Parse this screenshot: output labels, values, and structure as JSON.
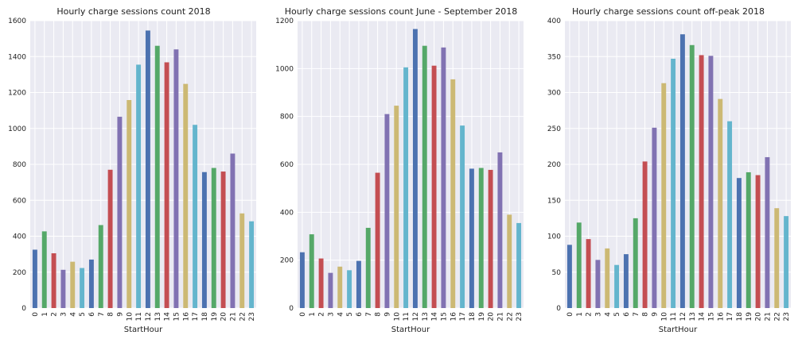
{
  "palette": [
    "#4C72B0",
    "#55A868",
    "#C44E52",
    "#8172B2",
    "#CCB974",
    "#64B5CD"
  ],
  "chart_data": [
    {
      "type": "bar",
      "title": "Hourly charge sessions count 2018",
      "xlabel": "StartHour",
      "ylabel": "",
      "ylim": [
        0,
        1600
      ],
      "yticks": [
        0,
        200,
        400,
        600,
        800,
        1000,
        1200,
        1400,
        1600
      ],
      "categories": [
        "0",
        "1",
        "2",
        "3",
        "4",
        "5",
        "6",
        "7",
        "8",
        "9",
        "10",
        "11",
        "12",
        "13",
        "14",
        "15",
        "16",
        "17",
        "18",
        "19",
        "20",
        "21",
        "22",
        "23"
      ],
      "values": [
        325,
        427,
        305,
        213,
        258,
        223,
        270,
        462,
        770,
        1065,
        1158,
        1355,
        1545,
        1460,
        1368,
        1440,
        1248,
        1020,
        757,
        780,
        760,
        860,
        527,
        483
      ],
      "grid": true,
      "legend": "none"
    },
    {
      "type": "bar",
      "title": "Hourly charge sessions count June - September 2018",
      "xlabel": "StartHour",
      "ylabel": "",
      "ylim": [
        0,
        1200
      ],
      "yticks": [
        0,
        200,
        400,
        600,
        800,
        1000,
        1200
      ],
      "categories": [
        "0",
        "1",
        "2",
        "3",
        "4",
        "5",
        "6",
        "7",
        "8",
        "9",
        "10",
        "11",
        "12",
        "13",
        "14",
        "15",
        "16",
        "17",
        "18",
        "19",
        "20",
        "21",
        "22",
        "23"
      ],
      "values": [
        233,
        308,
        207,
        147,
        173,
        158,
        197,
        335,
        565,
        810,
        845,
        1005,
        1165,
        1095,
        1012,
        1088,
        955,
        762,
        582,
        585,
        577,
        650,
        390,
        355
      ],
      "grid": true,
      "legend": "none"
    },
    {
      "type": "bar",
      "title": "Hourly charge sessions count off-peak 2018",
      "xlabel": "StartHour",
      "ylabel": "",
      "ylim": [
        0,
        400
      ],
      "yticks": [
        0,
        50,
        100,
        150,
        200,
        250,
        300,
        350,
        400
      ],
      "categories": [
        "0",
        "1",
        "2",
        "3",
        "4",
        "5",
        "6",
        "7",
        "8",
        "9",
        "10",
        "11",
        "12",
        "13",
        "14",
        "15",
        "16",
        "17",
        "18",
        "19",
        "20",
        "21",
        "22",
        "23"
      ],
      "values": [
        88,
        119,
        96,
        67,
        83,
        60,
        75,
        125,
        204,
        251,
        313,
        347,
        381,
        366,
        352,
        351,
        291,
        260,
        181,
        189,
        185,
        210,
        139,
        128
      ],
      "grid": true,
      "legend": "none"
    }
  ]
}
